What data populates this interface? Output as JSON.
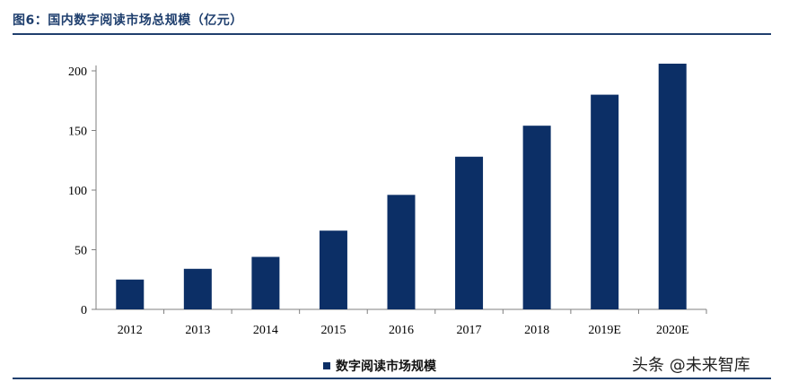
{
  "header": {
    "title": "图6：国内数字阅读市场总规模（亿元）"
  },
  "watermark": "头条 @未来智库",
  "colors": {
    "bar": "#0c2f66",
    "rule": "#1f3f6e",
    "axis": "#7f7f7f"
  },
  "chart_data": {
    "type": "bar",
    "title": "图6：国内数字阅读市场总规模（亿元）",
    "categories": [
      "2012",
      "2013",
      "2014",
      "2015",
      "2016",
      "2017",
      "2018",
      "2019E",
      "2020E"
    ],
    "series": [
      {
        "name": "数字阅读市场规模",
        "values": [
          25,
          34,
          44,
          66,
          96,
          128,
          154,
          180,
          206
        ]
      }
    ],
    "ylim": [
      0,
      200
    ],
    "yticks": [
      0,
      50,
      100,
      150,
      200
    ],
    "legend": "bottom-center",
    "grid": false
  }
}
